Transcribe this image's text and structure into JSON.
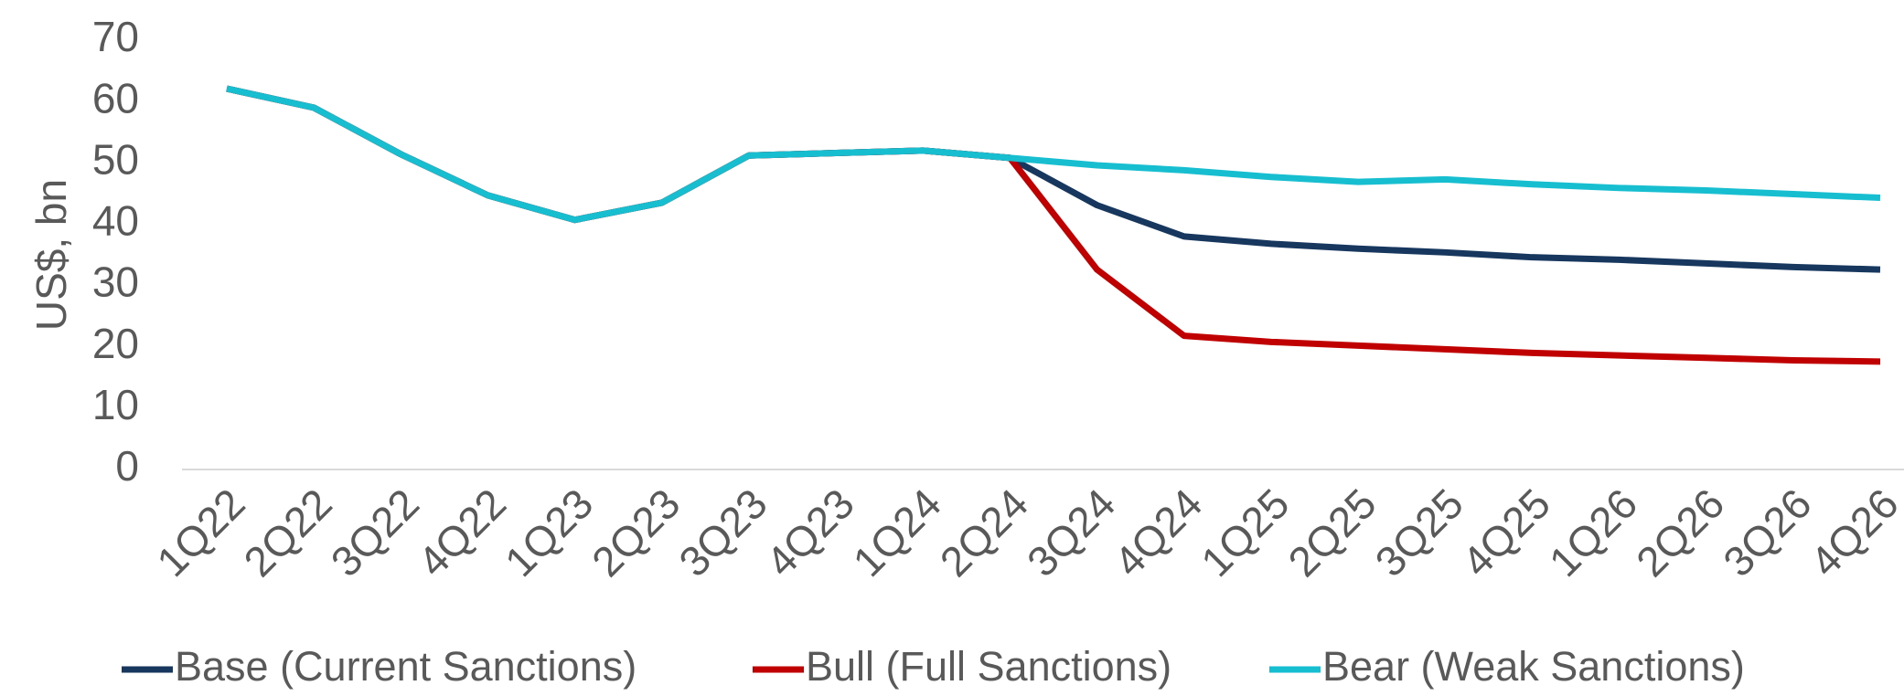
{
  "chart_data": {
    "type": "line",
    "y_label": "US$, bn",
    "categories": [
      "1Q22",
      "2Q22",
      "3Q22",
      "4Q22",
      "1Q23",
      "2Q23",
      "3Q23",
      "4Q23",
      "1Q24",
      "2Q24",
      "3Q24",
      "4Q24",
      "1Q25",
      "2Q25",
      "3Q25",
      "4Q25",
      "1Q26",
      "2Q26",
      "3Q26",
      "4Q26"
    ],
    "series": [
      {
        "name": "Base (Current Sanctions)",
        "color": "#17375e",
        "values": [
          62.1,
          59,
          51.4,
          44.7,
          40.7,
          43.5,
          51.2,
          51.6,
          52,
          50.8,
          43.1,
          38,
          36.8,
          36,
          35.4,
          34.6,
          34.2,
          33.6,
          33,
          32.6
        ]
      },
      {
        "name": "Bull (Full Sanctions)",
        "color": "#c00000",
        "values": [
          62.1,
          59,
          51.4,
          44.7,
          40.7,
          43.5,
          51.2,
          51.6,
          52,
          50.8,
          32.6,
          21.8,
          20.8,
          20.2,
          19.6,
          19,
          18.6,
          18.2,
          17.8,
          17.6
        ]
      },
      {
        "name": "Bear (Weak Sanctions)",
        "color": "#17becf",
        "values": [
          62.1,
          59,
          51.4,
          44.7,
          40.7,
          43.5,
          51.2,
          51.6,
          52,
          50.8,
          49.6,
          48.8,
          47.7,
          46.9,
          47.3,
          46.5,
          45.9,
          45.5,
          44.9,
          44.3
        ]
      }
    ],
    "ylim": [
      0,
      70
    ],
    "yticks": [
      0,
      10,
      20,
      30,
      40,
      50,
      60,
      70
    ],
    "legend": "bottom"
  }
}
